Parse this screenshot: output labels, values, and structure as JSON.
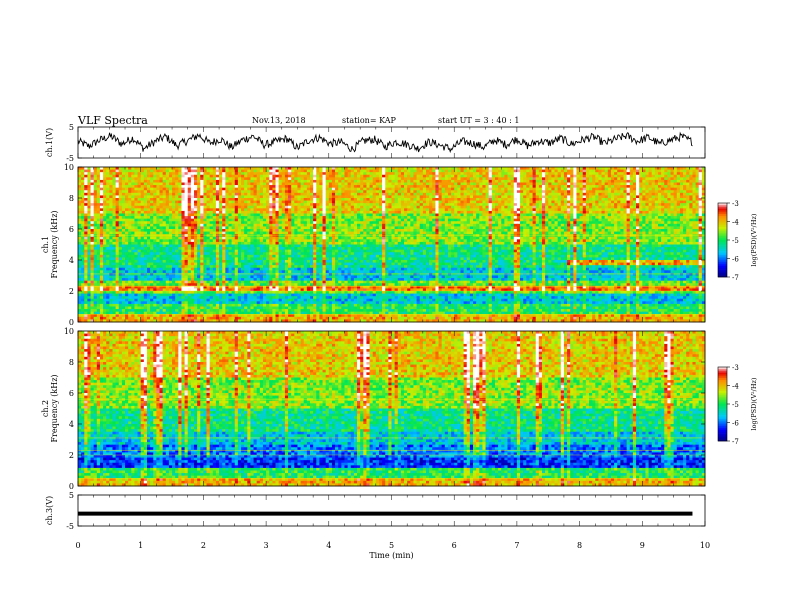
{
  "header": {
    "title": "VLF Spectra",
    "date": "Nov.13, 2018",
    "station": "station= KAP",
    "start": "start  UT  =  3 : 40 : 1"
  },
  "chart_data": [
    {
      "type": "line",
      "panel": "ch1-waveform",
      "ylabel": "ch.1(V)",
      "ylim": [
        -5,
        5
      ],
      "yticks": [
        "5",
        "-5"
      ],
      "xlim": [
        0,
        9.8
      ],
      "series": [
        {
          "values": [
            0.4,
            -1.2,
            0.8,
            2.1,
            -0.5,
            1.5,
            -2.0,
            0.3,
            1.9,
            -1.0,
            0.6,
            2.4,
            -0.2,
            1.1,
            -1.6,
            0.9,
            2.0,
            -0.8,
            0.2,
            1.3,
            -1.8,
            0.7,
            1.6,
            -0.4,
            0.1,
            -2.2,
            0.5,
            1.0,
            -1.3,
            0.3,
            -0.6,
            -1.9,
            0.2,
            -0.9,
            -2.1,
            0.4,
            -0.3,
            -1.5,
            0.8,
            -0.7,
            1.2,
            -1.1,
            0.5,
            -0.2,
            1.4,
            -0.6,
            0.9,
            1.8,
            -0.3,
            1.1,
            2.2,
            0.4,
            1.7,
            -0.5,
            0.8,
            1.9,
            0.2
          ]
        }
      ]
    },
    {
      "type": "heatmap",
      "panel": "ch1-spectrogram",
      "ylabel": "ch.1\nFrequency (kHz)",
      "ylim": [
        0,
        10
      ],
      "yticks": [
        "0",
        "2",
        "4",
        "6",
        "8",
        "10"
      ],
      "xlim": [
        0,
        10
      ],
      "colorbar": {
        "label": "log(PSD)(V²/Hz)",
        "range": [
          -7,
          -3
        ],
        "ticks": [
          "-3",
          "-4",
          "-5",
          "-6",
          "-7"
        ]
      }
    },
    {
      "type": "heatmap",
      "panel": "ch2-spectrogram",
      "ylabel": "ch.2\nFrequency (kHz)",
      "ylim": [
        0,
        10
      ],
      "yticks": [
        "0",
        "2",
        "4",
        "6",
        "8",
        "10"
      ],
      "xlim": [
        0,
        10
      ],
      "colorbar": {
        "label": "log(PSD)(V²/Hz)",
        "range": [
          -7,
          -3
        ],
        "ticks": [
          "-3",
          "-4",
          "-5",
          "-6",
          "-7"
        ]
      }
    },
    {
      "type": "line",
      "panel": "ch3-waveform",
      "ylabel": "ch.3(V)",
      "ylim": [
        -5,
        5
      ],
      "yticks": [
        "5",
        "-5"
      ],
      "xlim": [
        0,
        9.8
      ],
      "series": [
        {
          "values": [
            -1,
            -1
          ]
        }
      ]
    }
  ],
  "xaxis": {
    "label": "Time  (min)",
    "ticks": [
      "0",
      "1",
      "2",
      "3",
      "4",
      "5",
      "6",
      "7",
      "8",
      "9",
      "10"
    ]
  }
}
